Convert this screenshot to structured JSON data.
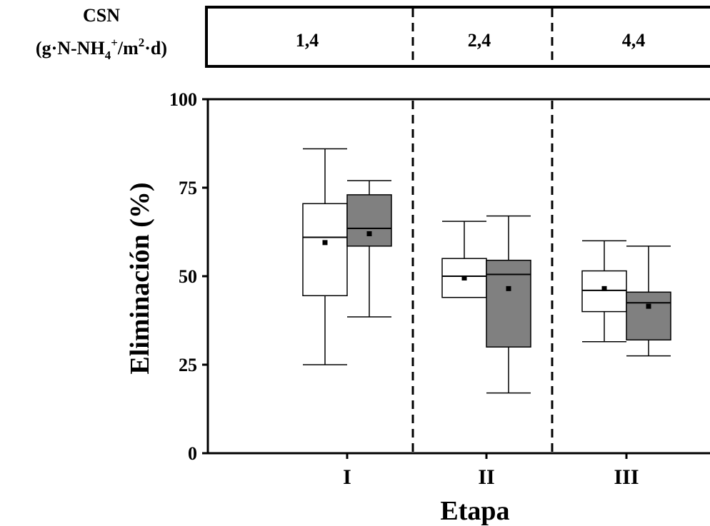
{
  "header": {
    "label_line1": "CSN",
    "label_line2_pre": "(g·N-NH",
    "label_line2_sub": "4",
    "label_line2_sup1": "+",
    "label_line2_mid": "/m",
    "label_line2_sup2": "2",
    "label_line2_post": "·d)",
    "values": [
      "1,4",
      "2,4",
      "4,4"
    ]
  },
  "chart_data": {
    "type": "box",
    "title": "",
    "xlabel": "Etapa",
    "ylabel": "Eliminación (%)",
    "ylim": [
      0,
      100
    ],
    "yticks": [
      0,
      25,
      50,
      75,
      100
    ],
    "categories": [
      "I",
      "II",
      "III"
    ],
    "colors": {
      "series_a_fill": "#ffffff",
      "series_b_fill": "#808080",
      "stroke": "#000000"
    },
    "series": [
      {
        "fill": "#ffffff",
        "boxes": [
          {
            "whisker_low": 25,
            "q1": 44.5,
            "median": 61,
            "q3": 70.5,
            "whisker_high": 86,
            "mean": 59.5
          },
          {
            "whisker_low": 44,
            "q1": 44,
            "median": 50,
            "q3": 55,
            "whisker_high": 65.5,
            "mean": 49.5
          },
          {
            "whisker_low": 31.5,
            "q1": 40,
            "median": 46,
            "q3": 51.5,
            "whisker_high": 60,
            "mean": 46.5
          }
        ]
      },
      {
        "fill": "#808080",
        "boxes": [
          {
            "whisker_low": 38.5,
            "q1": 58.5,
            "median": 63.5,
            "q3": 73,
            "whisker_high": 77,
            "mean": 62
          },
          {
            "whisker_low": 17,
            "q1": 30,
            "median": 50.5,
            "q3": 54.5,
            "whisker_high": 67,
            "mean": 46.5
          },
          {
            "whisker_low": 27.5,
            "q1": 32,
            "median": 42.5,
            "q3": 45.5,
            "whisker_high": 58.5,
            "mean": 41.5
          }
        ]
      }
    ],
    "stage_dividers": [
      "I|II",
      "II|III"
    ]
  }
}
